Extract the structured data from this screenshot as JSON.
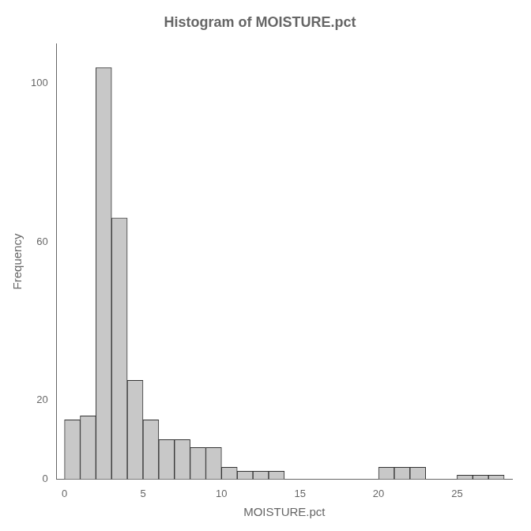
{
  "chart_data": {
    "type": "histogram",
    "title": "Histogram of MOISTURE.pct",
    "xlabel": "MOISTURE.pct",
    "ylabel": "Frequency",
    "bins": [
      0,
      1,
      2,
      3,
      4,
      5,
      6,
      7,
      8,
      9,
      10,
      11,
      12,
      13,
      14,
      15,
      16,
      17,
      18,
      19,
      20,
      21,
      22,
      23,
      24,
      25,
      26,
      27,
      28
    ],
    "values": [
      15,
      16,
      104,
      66,
      25,
      15,
      10,
      10,
      8,
      8,
      3,
      2,
      2,
      2,
      0,
      0,
      0,
      0,
      0,
      0,
      3,
      3,
      3,
      0,
      0,
      1,
      1,
      1
    ],
    "color": "#c8c8c8",
    "xlim": [
      -0.5,
      28.5
    ],
    "ylim": [
      0,
      110
    ],
    "xticks": [
      0,
      5,
      10,
      15,
      20,
      25
    ],
    "yticks": [
      0,
      20,
      60,
      100
    ],
    "grid": false
  }
}
